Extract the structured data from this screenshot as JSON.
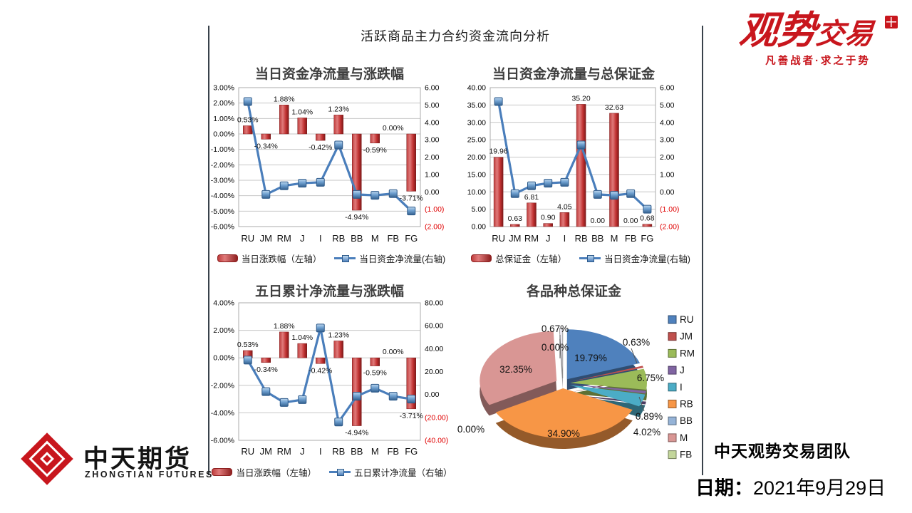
{
  "main_title": "活跃商品主力合约资金流向分析",
  "colors": {
    "bar_red": "#c0392b",
    "line_blue": "#4a7ebb",
    "negative_tick_red": "#e00000",
    "gridline": "#c6c6c6",
    "brand_red": "#c8161d"
  },
  "chart_data": [
    {
      "id": "c1",
      "type": "bar",
      "subtype": "combo-bar-line",
      "title": "当日资金净流量与涨跌幅",
      "categories": [
        "RU",
        "JM",
        "RM",
        "J",
        "I",
        "RB",
        "BB",
        "M",
        "FB",
        "FG"
      ],
      "bar_series": {
        "name": "当日涨跌幅（左轴）",
        "axis": "left",
        "values": [
          0.53,
          -0.34,
          1.88,
          1.04,
          -0.42,
          1.23,
          -4.94,
          -0.59,
          0,
          -3.71
        ],
        "labels": [
          "0.53%",
          "-0.34%",
          "1.88%",
          "1.04%",
          "-0.42%",
          "1.23%",
          "-4.94%",
          "-0.59%",
          "0.00%",
          "-3.71%"
        ]
      },
      "line_series": {
        "name": "当日资金净流量(右轴)",
        "axis": "right",
        "values": [
          5.2,
          -0.15,
          0.35,
          0.5,
          0.55,
          2.7,
          -0.15,
          -0.2,
          -0.1,
          -1.1
        ]
      },
      "left_axis": {
        "min": -6,
        "max": 3,
        "ticks": [
          "3.00%",
          "2.00%",
          "1.00%",
          "0.00%",
          "-1.00%",
          "-2.00%",
          "-3.00%",
          "-4.00%",
          "-5.00%",
          "-6.00%"
        ]
      },
      "right_axis": {
        "min": -2,
        "max": 6,
        "ticks": [
          "6.00",
          "5.00",
          "4.00",
          "3.00",
          "2.00",
          "1.00",
          "0.00",
          "(1.00)",
          "(2.00)"
        ]
      }
    },
    {
      "id": "c2",
      "type": "bar",
      "subtype": "combo-bar-line",
      "title": "当日资金净流量与总保证金",
      "categories": [
        "RU",
        "JM",
        "RM",
        "J",
        "I",
        "RB",
        "BB",
        "M",
        "FB",
        "FG"
      ],
      "bar_series": {
        "name": "总保证金（左轴）",
        "axis": "left",
        "values": [
          19.96,
          0.63,
          6.81,
          0.9,
          4.05,
          35.2,
          0,
          32.63,
          0,
          0.68
        ],
        "labels": [
          "19.96",
          "0.63",
          "6.81",
          "0.90",
          "4.05",
          "35.20",
          "0.00",
          "32.63",
          "0.00",
          "0.68"
        ]
      },
      "line_series": {
        "name": "当日资金净流量(右轴)",
        "axis": "right",
        "values": [
          5.2,
          -0.1,
          0.35,
          0.5,
          0.55,
          2.7,
          -0.15,
          -0.2,
          -0.1,
          -1.0
        ]
      },
      "left_axis": {
        "min": 0,
        "max": 40,
        "ticks": [
          "40.00",
          "35.00",
          "30.00",
          "25.00",
          "20.00",
          "15.00",
          "10.00",
          "5.00",
          "0.00"
        ]
      },
      "right_axis": {
        "min": -2,
        "max": 6,
        "ticks": [
          "6.00",
          "5.00",
          "4.00",
          "3.00",
          "2.00",
          "1.00",
          "0.00",
          "(1.00)",
          "(2.00)"
        ]
      }
    },
    {
      "id": "c3",
      "type": "bar",
      "subtype": "combo-bar-line",
      "title": "五日累计净流量与涨跌幅",
      "categories": [
        "RU",
        "JM",
        "RM",
        "J",
        "I",
        "RB",
        "BB",
        "M",
        "FB",
        "FG"
      ],
      "bar_series": {
        "name": "当日涨跌幅（左轴）",
        "axis": "left",
        "values": [
          0.53,
          -0.34,
          1.88,
          1.04,
          -0.42,
          1.23,
          -4.94,
          -0.59,
          0,
          -3.71
        ],
        "labels": [
          "0.53%",
          "-0.34%",
          "1.88%",
          "1.04%",
          "-0.42%",
          "1.23%",
          "-4.94%",
          "-0.59%",
          "0.00%",
          "-3.71%"
        ]
      },
      "line_series": {
        "name": "五日累计净流量（右轴）",
        "axis": "right",
        "values": [
          30,
          2.5,
          -7,
          -4.5,
          58,
          -24,
          -1.5,
          5.5,
          -1.5,
          -4
        ]
      },
      "left_axis": {
        "min": -6,
        "max": 4,
        "ticks": [
          "4.00%",
          "2.00%",
          "0.00%",
          "-2.00%",
          "-4.00%",
          "-6.00%"
        ]
      },
      "right_axis": {
        "min": -40,
        "max": 80,
        "ticks": [
          "80.00",
          "60.00",
          "40.00",
          "20.00",
          "0.00",
          "(20.00)",
          "(40.00)"
        ]
      }
    },
    {
      "id": "c4",
      "type": "pie",
      "subtype": "pie-3d-exploded",
      "title": "各品种总保证金",
      "labels": [
        "RU",
        "JM",
        "RM",
        "J",
        "I",
        "RB",
        "BB",
        "M",
        "FB",
        "FG"
      ],
      "values": [
        19.79,
        0.63,
        6.75,
        0.89,
        4.02,
        34.9,
        0,
        32.35,
        0,
        0.67
      ],
      "display_labels": [
        "19.79%",
        "0.63%",
        "6.75%",
        "0.89%",
        "4.02%",
        "34.90%",
        "0.00%",
        "32.35%",
        "0.00%",
        "0.67%"
      ],
      "slice_colors": [
        "#4F81BD",
        "#C0504D",
        "#9BBB59",
        "#8064A2",
        "#4BACC6",
        "#F79646",
        "#95B3D7",
        "#D99694",
        "#C3D69B",
        "#ECE9F3"
      ],
      "legend_items": [
        "RU",
        "JM",
        "RM",
        "J",
        "I",
        "RB",
        "BB",
        "M",
        "FB"
      ],
      "legend_colors": [
        "#4F81BD",
        "#C0504D",
        "#9BBB59",
        "#8064A2",
        "#4BACC6",
        "#F79646",
        "#95B3D7",
        "#D99694",
        "#C3D69B"
      ],
      "legend_position": "right"
    }
  ],
  "branding": {
    "guanshi": {
      "big": "观势",
      "small": "交易",
      "tagline": "凡善战者·求之于势"
    },
    "zhongtian": {
      "cn": "中天期货",
      "en": "ZHONGTIAN FUTURES"
    },
    "team": "中天观势交易团队",
    "date_label": "日期：",
    "date_value": "2021年9月29日"
  }
}
